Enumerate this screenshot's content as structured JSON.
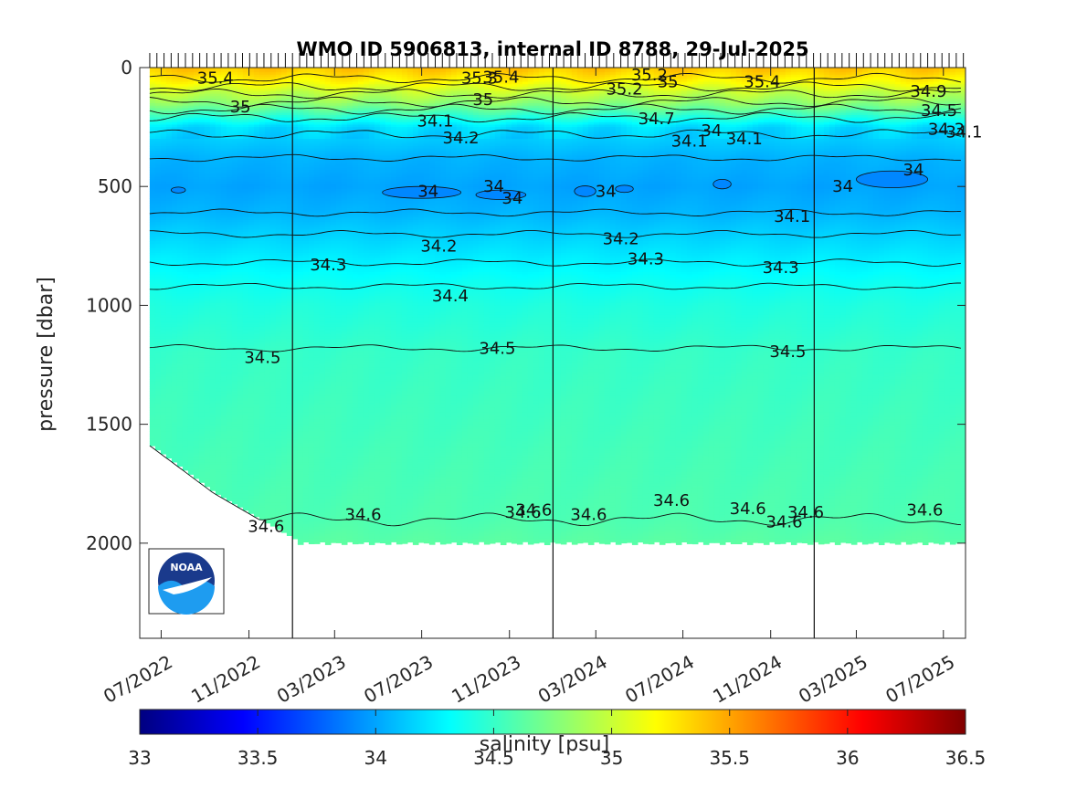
{
  "chart_data": {
    "type": "heatmap",
    "title": "WMO ID 5906813, internal ID 8788, 29-Jul-2025",
    "ylabel": "pressure [dbar]",
    "xlabel": "",
    "ylim": [
      2400,
      0
    ],
    "y_ticks": [
      0,
      500,
      1000,
      1500,
      2000
    ],
    "x_range": [
      "2022-06",
      "2025-08"
    ],
    "x_ticks": [
      {
        "date": "2022-07-01",
        "label": "07/2022"
      },
      {
        "date": "2022-11-01",
        "label": "11/2022"
      },
      {
        "date": "2023-03-01",
        "label": "03/2023"
      },
      {
        "date": "2023-07-01",
        "label": "07/2023"
      },
      {
        "date": "2023-11-01",
        "label": "11/2023"
      },
      {
        "date": "2024-03-01",
        "label": "03/2024"
      },
      {
        "date": "2024-07-01",
        "label": "07/2024"
      },
      {
        "date": "2024-11-01",
        "label": "11/2024"
      },
      {
        "date": "2025-03-01",
        "label": "03/2025"
      },
      {
        "date": "2025-07-01",
        "label": "07/2025"
      }
    ],
    "year_boundaries": [
      "2023-01-01",
      "2024-01-01",
      "2025-01-01"
    ],
    "first_profile": "2022-06-15",
    "last_profile": "2025-07-29",
    "colorbar": {
      "label": "salinity [psu]",
      "range": [
        33,
        36.5
      ],
      "ticks": [
        33,
        33.5,
        34,
        34.5,
        35,
        35.5,
        36,
        36.5
      ],
      "colormap": "jet",
      "colors": [
        "#000080",
        "#0000ff",
        "#0080ff",
        "#00ffff",
        "#80ff80",
        "#ffff00",
        "#ff8000",
        "#ff0000",
        "#800000"
      ]
    },
    "salinity_profile": [
      {
        "pressure": 0,
        "salinity": 35.4
      },
      {
        "pressure": 60,
        "salinity": 35.2
      },
      {
        "pressure": 100,
        "salinity": 35.0
      },
      {
        "pressure": 150,
        "salinity": 34.8
      },
      {
        "pressure": 250,
        "salinity": 34.2
      },
      {
        "pressure": 380,
        "salinity": 34.05
      },
      {
        "pressure": 500,
        "salinity": 34.0
      },
      {
        "pressure": 600,
        "salinity": 34.05
      },
      {
        "pressure": 700,
        "salinity": 34.15
      },
      {
        "pressure": 800,
        "salinity": 34.25
      },
      {
        "pressure": 900,
        "salinity": 34.35
      },
      {
        "pressure": 1000,
        "salinity": 34.42
      },
      {
        "pressure": 1200,
        "salinity": 34.5
      },
      {
        "pressure": 1900,
        "salinity": 34.58
      },
      {
        "pressure": 2000,
        "salinity": 34.62
      }
    ],
    "contour_labels": [
      {
        "date": "2022-09-15",
        "pressure": 45,
        "text": "35.4"
      },
      {
        "date": "2022-10-20",
        "pressure": 165,
        "text": "35"
      },
      {
        "date": "2023-09-20",
        "pressure": 45,
        "text": "35.3"
      },
      {
        "date": "2023-10-20",
        "pressure": 40,
        "text": "35.4"
      },
      {
        "date": "2023-09-25",
        "pressure": 135,
        "text": "35"
      },
      {
        "date": "2023-07-20",
        "pressure": 225,
        "text": "34.1"
      },
      {
        "date": "2023-08-25",
        "pressure": 295,
        "text": "34.2"
      },
      {
        "date": "2024-04-10",
        "pressure": 90,
        "text": "35.2"
      },
      {
        "date": "2024-05-15",
        "pressure": 30,
        "text": "35.2"
      },
      {
        "date": "2024-06-10",
        "pressure": 60,
        "text": "35"
      },
      {
        "date": "2024-05-25",
        "pressure": 215,
        "text": "34.7"
      },
      {
        "date": "2024-08-10",
        "pressure": 265,
        "text": "34"
      },
      {
        "date": "2024-07-10",
        "pressure": 310,
        "text": "34.1"
      },
      {
        "date": "2024-09-25",
        "pressure": 300,
        "text": "34.1"
      },
      {
        "date": "2024-10-20",
        "pressure": 60,
        "text": "35.4"
      },
      {
        "date": "2025-06-10",
        "pressure": 100,
        "text": "34.9"
      },
      {
        "date": "2025-06-25",
        "pressure": 180,
        "text": "34.5"
      },
      {
        "date": "2025-07-05",
        "pressure": 260,
        "text": "34.3"
      },
      {
        "date": "2025-07-30",
        "pressure": 270,
        "text": "34.1"
      },
      {
        "date": "2025-05-20",
        "pressure": 430,
        "text": "34"
      },
      {
        "date": "2025-02-10",
        "pressure": 500,
        "text": "34"
      },
      {
        "date": "2023-07-10",
        "pressure": 520,
        "text": "34"
      },
      {
        "date": "2023-10-10",
        "pressure": 500,
        "text": "34"
      },
      {
        "date": "2023-11-05",
        "pressure": 550,
        "text": "34"
      },
      {
        "date": "2024-03-15",
        "pressure": 520,
        "text": "34"
      },
      {
        "date": "2024-12-01",
        "pressure": 625,
        "text": "34.1"
      },
      {
        "date": "2023-07-25",
        "pressure": 750,
        "text": "34.2"
      },
      {
        "date": "2024-04-05",
        "pressure": 720,
        "text": "34.2"
      },
      {
        "date": "2023-02-20",
        "pressure": 830,
        "text": "34.3"
      },
      {
        "date": "2024-05-10",
        "pressure": 805,
        "text": "34.3"
      },
      {
        "date": "2024-11-15",
        "pressure": 840,
        "text": "34.3"
      },
      {
        "date": "2023-08-10",
        "pressure": 960,
        "text": "34.4"
      },
      {
        "date": "2022-11-20",
        "pressure": 1220,
        "text": "34.5"
      },
      {
        "date": "2023-10-15",
        "pressure": 1180,
        "text": "34.5"
      },
      {
        "date": "2024-11-25",
        "pressure": 1195,
        "text": "34.5"
      },
      {
        "date": "2022-11-25",
        "pressure": 1930,
        "text": "34.6"
      },
      {
        "date": "2023-04-10",
        "pressure": 1880,
        "text": "34.6"
      },
      {
        "date": "2023-11-20",
        "pressure": 1870,
        "text": "34.6"
      },
      {
        "date": "2023-12-05",
        "pressure": 1860,
        "text": "34.6"
      },
      {
        "date": "2024-02-20",
        "pressure": 1880,
        "text": "34.6"
      },
      {
        "date": "2024-06-15",
        "pressure": 1820,
        "text": "34.6"
      },
      {
        "date": "2024-09-30",
        "pressure": 1855,
        "text": "34.6"
      },
      {
        "date": "2024-11-20",
        "pressure": 1910,
        "text": "34.6"
      },
      {
        "date": "2024-12-20",
        "pressure": 1870,
        "text": "34.6"
      },
      {
        "date": "2025-06-05",
        "pressure": 1860,
        "text": "34.6"
      }
    ],
    "contour_levels": [
      {
        "level": 35.4,
        "pressure": 45
      },
      {
        "level": 35.2,
        "pressure": 80
      },
      {
        "level": 35.0,
        "pressure": 110
      },
      {
        "level": 34.8,
        "pressure": 145
      },
      {
        "level": 34.6,
        "pressure": 175
      },
      {
        "level": 34.4,
        "pressure": 210
      },
      {
        "level": 34.2,
        "pressure": 280
      },
      {
        "level": 34.1,
        "pressure": 380
      },
      {
        "level": 34.1,
        "pressure": 610
      },
      {
        "level": 34.2,
        "pressure": 700
      },
      {
        "level": 34.3,
        "pressure": 820
      },
      {
        "level": 34.4,
        "pressure": 920
      },
      {
        "level": 34.5,
        "pressure": 1180
      },
      {
        "level": 34.6,
        "pressure": 1900
      }
    ],
    "fresh_core_lenses": [
      {
        "date": "2022-07-25",
        "pressure": 515,
        "width_days": 20,
        "depth": 25
      },
      {
        "date": "2023-07-01",
        "pressure": 525,
        "width_days": 110,
        "depth": 50
      },
      {
        "date": "2023-10-20",
        "pressure": 535,
        "width_days": 70,
        "depth": 40
      },
      {
        "date": "2024-02-15",
        "pressure": 520,
        "width_days": 30,
        "depth": 45
      },
      {
        "date": "2024-04-10",
        "pressure": 510,
        "width_days": 25,
        "depth": 30
      },
      {
        "date": "2024-08-25",
        "pressure": 490,
        "width_days": 25,
        "depth": 40
      },
      {
        "date": "2025-04-20",
        "pressure": 470,
        "width_days": 100,
        "depth": 70
      }
    ],
    "logo_text": "NOAA"
  }
}
